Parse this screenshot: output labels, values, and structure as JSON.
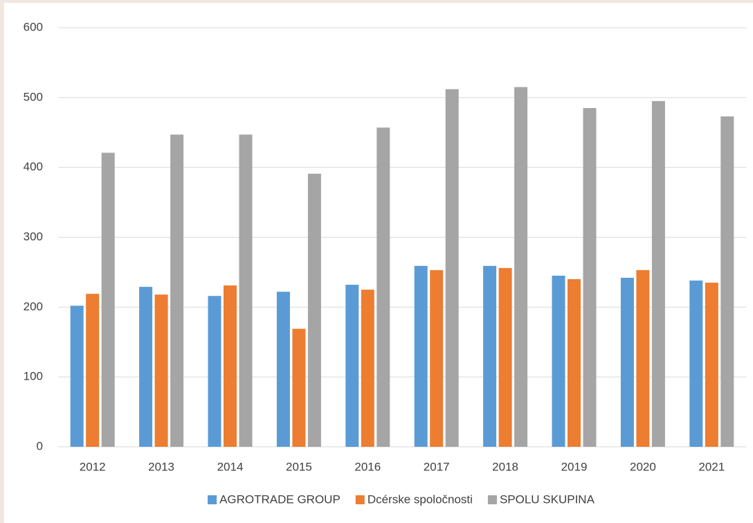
{
  "chart_data": {
    "type": "bar",
    "categories": [
      "2012",
      "2013",
      "2014",
      "2015",
      "2016",
      "2017",
      "2018",
      "2019",
      "2020",
      "2021"
    ],
    "series": [
      {
        "name": "AGROTRADE GROUP",
        "color": "#5b9bd5",
        "values": [
          202,
          229,
          216,
          222,
          232,
          259,
          259,
          245,
          242,
          238
        ]
      },
      {
        "name": "Dcérske spoločnosti",
        "color": "#ed7d31",
        "values": [
          219,
          218,
          231,
          169,
          225,
          253,
          256,
          240,
          253,
          235
        ]
      },
      {
        "name": "SPOLU SKUPINA",
        "color": "#a5a5a5",
        "values": [
          421,
          447,
          447,
          391,
          457,
          512,
          515,
          485,
          495,
          473
        ]
      }
    ],
    "ylim": [
      0,
      600
    ],
    "yticks": [
      0,
      100,
      200,
      300,
      400,
      500,
      600
    ],
    "grid": true,
    "legend": "bottom"
  }
}
